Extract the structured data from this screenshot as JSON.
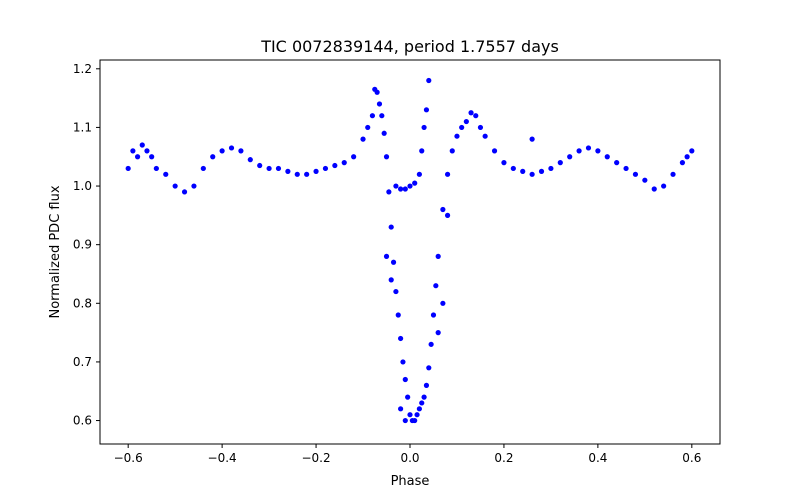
{
  "chart_data": {
    "type": "scatter",
    "title": "TIC 0072839144, period 1.7557 days",
    "xlabel": "Phase",
    "ylabel": "Normalized PDC flux",
    "xlim": [
      -0.66,
      0.66
    ],
    "ylim": [
      0.56,
      1.215
    ],
    "x_ticks": [
      -0.6,
      -0.4,
      -0.2,
      0.0,
      0.2,
      0.4,
      0.6
    ],
    "x_tick_labels": [
      "−0.6",
      "−0.4",
      "−0.2",
      "0.0",
      "0.2",
      "0.4",
      "0.6"
    ],
    "y_ticks": [
      0.6,
      0.7,
      0.8,
      0.9,
      1.0,
      1.1,
      1.2
    ],
    "y_tick_labels": [
      "0.6",
      "0.7",
      "0.8",
      "0.9",
      "1.0",
      "1.1",
      "1.2"
    ],
    "grid": false,
    "marker_color": "#0000ff",
    "series": [
      {
        "name": "PDC flux",
        "points": [
          [
            -0.6,
            1.03
          ],
          [
            -0.59,
            1.06
          ],
          [
            -0.58,
            1.05
          ],
          [
            -0.57,
            1.07
          ],
          [
            -0.56,
            1.06
          ],
          [
            -0.55,
            1.05
          ],
          [
            -0.54,
            1.03
          ],
          [
            -0.52,
            1.02
          ],
          [
            -0.5,
            1.0
          ],
          [
            -0.48,
            0.99
          ],
          [
            -0.46,
            1.0
          ],
          [
            -0.44,
            1.03
          ],
          [
            -0.42,
            1.05
          ],
          [
            -0.4,
            1.06
          ],
          [
            -0.38,
            1.065
          ],
          [
            -0.36,
            1.06
          ],
          [
            -0.34,
            1.045
          ],
          [
            -0.32,
            1.035
          ],
          [
            -0.3,
            1.03
          ],
          [
            -0.28,
            1.03
          ],
          [
            -0.26,
            1.025
          ],
          [
            -0.24,
            1.02
          ],
          [
            -0.22,
            1.02
          ],
          [
            -0.2,
            1.025
          ],
          [
            -0.18,
            1.03
          ],
          [
            -0.16,
            1.035
          ],
          [
            -0.14,
            1.04
          ],
          [
            -0.12,
            1.05
          ],
          [
            -0.1,
            1.08
          ],
          [
            -0.09,
            1.1
          ],
          [
            -0.08,
            1.12
          ],
          [
            -0.075,
            1.165
          ],
          [
            -0.07,
            1.16
          ],
          [
            -0.065,
            1.14
          ],
          [
            -0.06,
            1.12
          ],
          [
            -0.055,
            1.09
          ],
          [
            -0.05,
            1.05
          ],
          [
            -0.045,
            0.99
          ],
          [
            -0.04,
            0.93
          ],
          [
            -0.035,
            0.87
          ],
          [
            -0.03,
            0.82
          ],
          [
            -0.025,
            0.78
          ],
          [
            -0.02,
            0.74
          ],
          [
            -0.015,
            0.7
          ],
          [
            -0.01,
            0.67
          ],
          [
            -0.005,
            0.64
          ],
          [
            0.0,
            0.61
          ],
          [
            0.005,
            0.6
          ],
          [
            0.01,
            0.6
          ],
          [
            0.015,
            0.61
          ],
          [
            0.02,
            0.62
          ],
          [
            0.025,
            0.63
          ],
          [
            0.03,
            0.64
          ],
          [
            0.035,
            0.66
          ],
          [
            0.04,
            0.69
          ],
          [
            0.045,
            0.73
          ],
          [
            0.05,
            0.78
          ],
          [
            0.055,
            0.83
          ],
          [
            0.06,
            0.88
          ],
          [
            0.07,
            0.96
          ],
          [
            0.08,
            1.02
          ],
          [
            0.09,
            1.06
          ],
          [
            0.1,
            1.085
          ],
          [
            0.11,
            1.1
          ],
          [
            0.12,
            1.11
          ],
          [
            0.13,
            1.125
          ],
          [
            0.14,
            1.12
          ],
          [
            0.15,
            1.1
          ],
          [
            0.16,
            1.085
          ],
          [
            0.18,
            1.06
          ],
          [
            0.2,
            1.04
          ],
          [
            0.22,
            1.03
          ],
          [
            0.24,
            1.025
          ],
          [
            0.26,
            1.02
          ],
          [
            0.28,
            1.025
          ],
          [
            0.3,
            1.03
          ],
          [
            0.32,
            1.04
          ],
          [
            0.34,
            1.05
          ],
          [
            0.36,
            1.06
          ],
          [
            0.38,
            1.065
          ],
          [
            0.4,
            1.06
          ],
          [
            0.42,
            1.05
          ],
          [
            0.44,
            1.04
          ],
          [
            0.46,
            1.03
          ],
          [
            0.48,
            1.02
          ],
          [
            0.5,
            1.01
          ],
          [
            0.52,
            0.995
          ],
          [
            0.54,
            1.0
          ],
          [
            0.56,
            1.02
          ],
          [
            0.58,
            1.04
          ],
          [
            0.59,
            1.05
          ],
          [
            0.6,
            1.06
          ],
          [
            -0.03,
            1.0
          ],
          [
            -0.02,
            0.995
          ],
          [
            -0.01,
            0.995
          ],
          [
            0.0,
            1.0
          ],
          [
            0.01,
            1.005
          ],
          [
            0.02,
            1.02
          ],
          [
            0.025,
            1.06
          ],
          [
            0.03,
            1.1
          ],
          [
            0.035,
            1.13
          ],
          [
            0.04,
            1.18
          ],
          [
            -0.05,
            0.88
          ],
          [
            -0.04,
            0.84
          ],
          [
            -0.02,
            0.62
          ],
          [
            -0.01,
            0.6
          ],
          [
            0.06,
            0.75
          ],
          [
            0.07,
            0.8
          ],
          [
            0.08,
            0.95
          ],
          [
            0.26,
            1.08
          ]
        ]
      }
    ]
  }
}
